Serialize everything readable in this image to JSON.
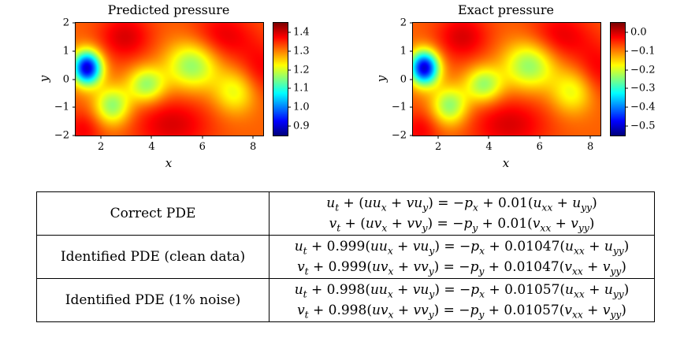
{
  "figure": {
    "panels": [
      {
        "title": "Predicted pressure",
        "xlabel": "x",
        "ylabel": "y",
        "x_ticks": [
          {
            "v": 2,
            "label": "2"
          },
          {
            "v": 4,
            "label": "4"
          },
          {
            "v": 6,
            "label": "6"
          },
          {
            "v": 8,
            "label": "8"
          }
        ],
        "y_ticks": [
          {
            "v": 2,
            "label": "2"
          },
          {
            "v": 1,
            "label": "1"
          },
          {
            "v": 0,
            "label": "0"
          },
          {
            "v": -1,
            "label": "−1"
          },
          {
            "v": -2,
            "label": "−2"
          }
        ],
        "colorbar_ticks": [
          {
            "v": 1.4,
            "label": "1.4"
          },
          {
            "v": 1.3,
            "label": "1.3"
          },
          {
            "v": 1.2,
            "label": "1.2"
          },
          {
            "v": 1.1,
            "label": "1.1"
          },
          {
            "v": 1.0,
            "label": "1.0"
          },
          {
            "v": 0.9,
            "label": "0.9"
          }
        ]
      },
      {
        "title": "Exact pressure",
        "xlabel": "x",
        "ylabel": "y",
        "x_ticks": [
          {
            "v": 2,
            "label": "2"
          },
          {
            "v": 4,
            "label": "4"
          },
          {
            "v": 6,
            "label": "6"
          },
          {
            "v": 8,
            "label": "8"
          }
        ],
        "y_ticks": [
          {
            "v": 2,
            "label": "2"
          },
          {
            "v": 1,
            "label": "1"
          },
          {
            "v": 0,
            "label": "0"
          },
          {
            "v": -1,
            "label": "−1"
          },
          {
            "v": -2,
            "label": "−2"
          }
        ],
        "colorbar_ticks": [
          {
            "v": 0.0,
            "label": "0.0"
          },
          {
            "v": -0.1,
            "label": "−0.1"
          },
          {
            "v": -0.2,
            "label": "−0.2"
          },
          {
            "v": -0.3,
            "label": "−0.3"
          },
          {
            "v": -0.4,
            "label": "−0.4"
          },
          {
            "v": -0.5,
            "label": "−0.5"
          }
        ]
      }
    ]
  },
  "chart_data": [
    {
      "type": "heatmap",
      "title": "Predicted pressure",
      "xlabel": "x",
      "ylabel": "y",
      "xlim": [
        1,
        8.4
      ],
      "ylim": [
        -2,
        2
      ],
      "colormap": "jet",
      "value_range": [
        0.85,
        1.45
      ],
      "colorbar_ticks": [
        1.4,
        1.3,
        1.2,
        1.1,
        1.0,
        0.9
      ],
      "description": "Pressure field of flow past a cylinder: deep low-pressure (blue) vortex near x=1.5,y=0.4; alternating weaker low-pressure (green) vortices downstream at (2.5,-0.9),(3.8,-0.2),(5.6,0.5); high pressure (red) lobes between them; orange background.",
      "field": {
        "base": 0.78,
        "blobs": [
          {
            "x": 1.45,
            "y": 0.4,
            "sx": 0.4,
            "sy": 0.42,
            "a": -0.7
          },
          {
            "x": 2.45,
            "y": -0.95,
            "sx": 0.5,
            "sy": 0.48,
            "a": -0.27
          },
          {
            "x": 3.8,
            "y": -0.2,
            "sx": 0.52,
            "sy": 0.45,
            "a": -0.26
          },
          {
            "x": 5.6,
            "y": 0.5,
            "sx": 0.72,
            "sy": 0.6,
            "a": -0.27
          },
          {
            "x": 7.3,
            "y": -0.45,
            "sx": 0.6,
            "sy": 0.55,
            "a": -0.18
          },
          {
            "x": 2.95,
            "y": 1.5,
            "sx": 0.75,
            "sy": 0.6,
            "a": 0.13
          },
          {
            "x": 4.8,
            "y": -1.6,
            "sx": 1.1,
            "sy": 0.7,
            "a": 0.13
          },
          {
            "x": 6.8,
            "y": 1.5,
            "sx": 0.9,
            "sy": 0.65,
            "a": 0.12
          },
          {
            "x": 1.3,
            "y": -1.8,
            "sx": 0.55,
            "sy": 0.5,
            "a": 0.1
          },
          {
            "x": 8.3,
            "y": 0.3,
            "sx": 0.6,
            "sy": 0.7,
            "a": 0.1
          }
        ]
      }
    },
    {
      "type": "heatmap",
      "title": "Exact pressure",
      "xlabel": "x",
      "ylabel": "y",
      "xlim": [
        1,
        8.4
      ],
      "ylim": [
        -2,
        2
      ],
      "colormap": "jet",
      "value_range": [
        -0.55,
        0.05
      ],
      "colorbar_ticks": [
        0.0,
        -0.1,
        -0.2,
        -0.3,
        -0.4,
        -0.5
      ],
      "description": "Identical spatial pattern to the predicted pressure (pressure is identifiable only up to a constant), shifted value range.",
      "field": {
        "base": 0.78,
        "blobs": [
          {
            "x": 1.45,
            "y": 0.4,
            "sx": 0.4,
            "sy": 0.42,
            "a": -0.7
          },
          {
            "x": 2.45,
            "y": -0.95,
            "sx": 0.5,
            "sy": 0.48,
            "a": -0.27
          },
          {
            "x": 3.8,
            "y": -0.2,
            "sx": 0.52,
            "sy": 0.45,
            "a": -0.26
          },
          {
            "x": 5.6,
            "y": 0.5,
            "sx": 0.72,
            "sy": 0.6,
            "a": -0.27
          },
          {
            "x": 7.3,
            "y": -0.45,
            "sx": 0.6,
            "sy": 0.55,
            "a": -0.18
          },
          {
            "x": 2.95,
            "y": 1.5,
            "sx": 0.75,
            "sy": 0.6,
            "a": 0.13
          },
          {
            "x": 4.8,
            "y": -1.6,
            "sx": 1.1,
            "sy": 0.7,
            "a": 0.13
          },
          {
            "x": 6.8,
            "y": 1.5,
            "sx": 0.9,
            "sy": 0.65,
            "a": 0.12
          },
          {
            "x": 1.3,
            "y": -1.8,
            "sx": 0.55,
            "sy": 0.5,
            "a": 0.1
          },
          {
            "x": 8.3,
            "y": 0.3,
            "sx": 0.6,
            "sy": 0.7,
            "a": 0.1
          }
        ]
      }
    }
  ],
  "table": {
    "rows": [
      {
        "label": "Correct PDE",
        "eq1": "u_t + (uu_x + vu_y) = −p_x + 0.01(u_xx + u_yy)",
        "eq2": "v_t + (uv_x + vv_y) = −p_y + 0.01(v_xx + v_yy)"
      },
      {
        "label": "Identified PDE (clean data)",
        "eq1": "u_t + 0.999(uu_x + vu_y) = −p_x + 0.01047(u_xx + u_yy)",
        "eq2": "v_t + 0.999(uv_x + vv_y) = −p_y + 0.01047(v_xx + v_yy)"
      },
      {
        "label": "Identified PDE (1% noise)",
        "eq1": "u_t + 0.998(uu_x + vu_y) = −p_x + 0.01057(u_xx + u_yy)",
        "eq2": "v_t + 0.998(uv_x + vv_y) = −p_y + 0.01057(v_xx + v_yy)"
      }
    ]
  }
}
